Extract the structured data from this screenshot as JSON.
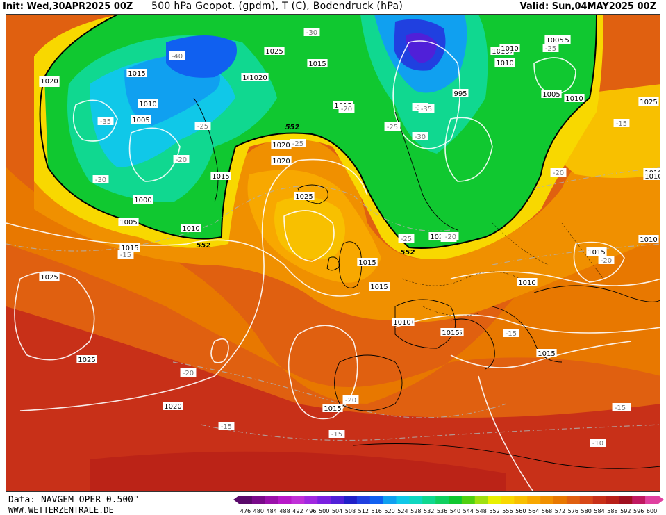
{
  "header": {
    "init": "Init: Wed,30APR2025 00Z",
    "title": "500 hPa Geopot. (gpdm), T (C), Bodendruck (hPa)",
    "valid": "Valid: Sun,04MAY2025 00Z"
  },
  "footer": {
    "data_source": "Data: NAVGEM OPER 0.500°",
    "website": "WWW.WETTERZENTRALE.DE"
  },
  "legend": {
    "values": [
      "476",
      "480",
      "484",
      "488",
      "492",
      "496",
      "500",
      "504",
      "508",
      "512",
      "516",
      "520",
      "524",
      "528",
      "532",
      "536",
      "540",
      "544",
      "548",
      "552",
      "556",
      "560",
      "564",
      "568",
      "572",
      "576",
      "580",
      "584",
      "588",
      "592",
      "596",
      "600"
    ],
    "colors": [
      "#5a0a6a",
      "#7a0a8a",
      "#9a10aa",
      "#b818c8",
      "#c030d8",
      "#a028e0",
      "#7a20e0",
      "#5020d8",
      "#2020c8",
      "#2040e0",
      "#1060f0",
      "#10a0f0",
      "#10c8e8",
      "#10d8c0",
      "#10d890",
      "#10d060",
      "#10c830",
      "#50d010",
      "#a0e010",
      "#e8f000",
      "#f8d800",
      "#f8c000",
      "#f8a800",
      "#f09000",
      "#e87800",
      "#e06010",
      "#d84818",
      "#c83018",
      "#b82018",
      "#a01020",
      "#c01860",
      "#e040a0"
    ]
  },
  "map": {
    "isobar_labels": [
      "1015",
      "1025",
      "1010",
      "1005",
      "1015",
      "1005",
      "1020",
      "1015",
      "1010",
      "1005",
      "1000",
      "1015",
      "1005",
      "1010",
      "1015",
      "1020",
      "1025",
      "1020",
      "1025",
      "1015",
      "1010",
      "1025",
      "1020",
      "1015",
      "1010",
      "1010",
      "1015",
      "1025",
      "1020",
      "995",
      "1010",
      "1015",
      "1010",
      "1015",
      "1015",
      "1010",
      "1010",
      "1025",
      "1020",
      "1005",
      "1010",
      "1020",
      "1020",
      "1015",
      "1010",
      "1015",
      "1015"
    ],
    "temperature_labels": [
      "-40",
      "-30",
      "-35",
      "-25",
      "-20",
      "-30",
      "-35",
      "-25",
      "-20",
      "-30",
      "-35",
      "-25",
      "-25",
      "-20",
      "-15",
      "-20",
      "-25",
      "-20",
      "-15",
      "-20",
      "-20",
      "-15",
      "-15",
      "-15",
      "-10",
      "-15",
      "-20",
      "-15"
    ],
    "geopotential_labels": [
      "552",
      "552",
      "552"
    ]
  }
}
